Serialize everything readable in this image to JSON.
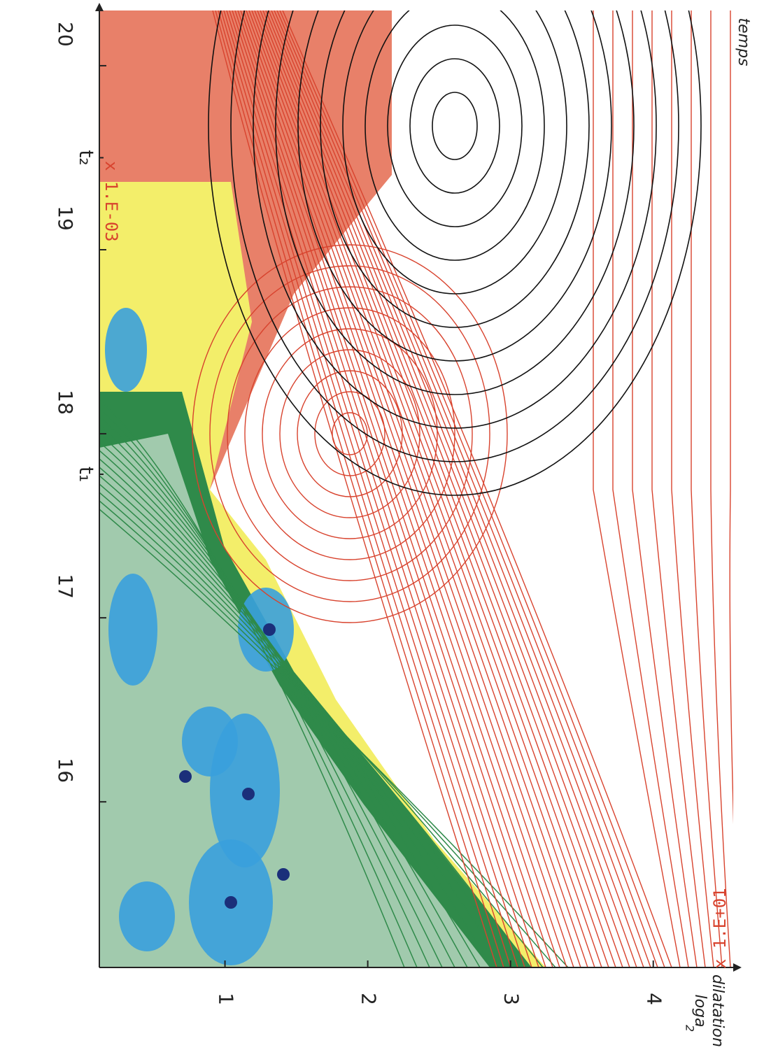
{
  "chart_data": {
    "type": "contour",
    "x_label": "temps",
    "y_label": "dilatation",
    "y_label_unit": "loga",
    "y_label_unit_sub": "2",
    "xlim": [
      15.1,
      20.3
    ],
    "xticks": [
      16,
      17,
      18,
      19,
      20
    ],
    "ylim": [
      0.12,
      4.56
    ],
    "yticks": [
      1,
      2,
      3,
      4
    ],
    "time_marks": [
      {
        "text": "t₁",
        "x": 17.78
      },
      {
        "text": "t₂",
        "x": 19.5
      }
    ],
    "scale_labels": [
      "x 1.E-03",
      "x 1.E+01"
    ],
    "scale_color": "#d8432e",
    "axis_color": "#222222"
  }
}
